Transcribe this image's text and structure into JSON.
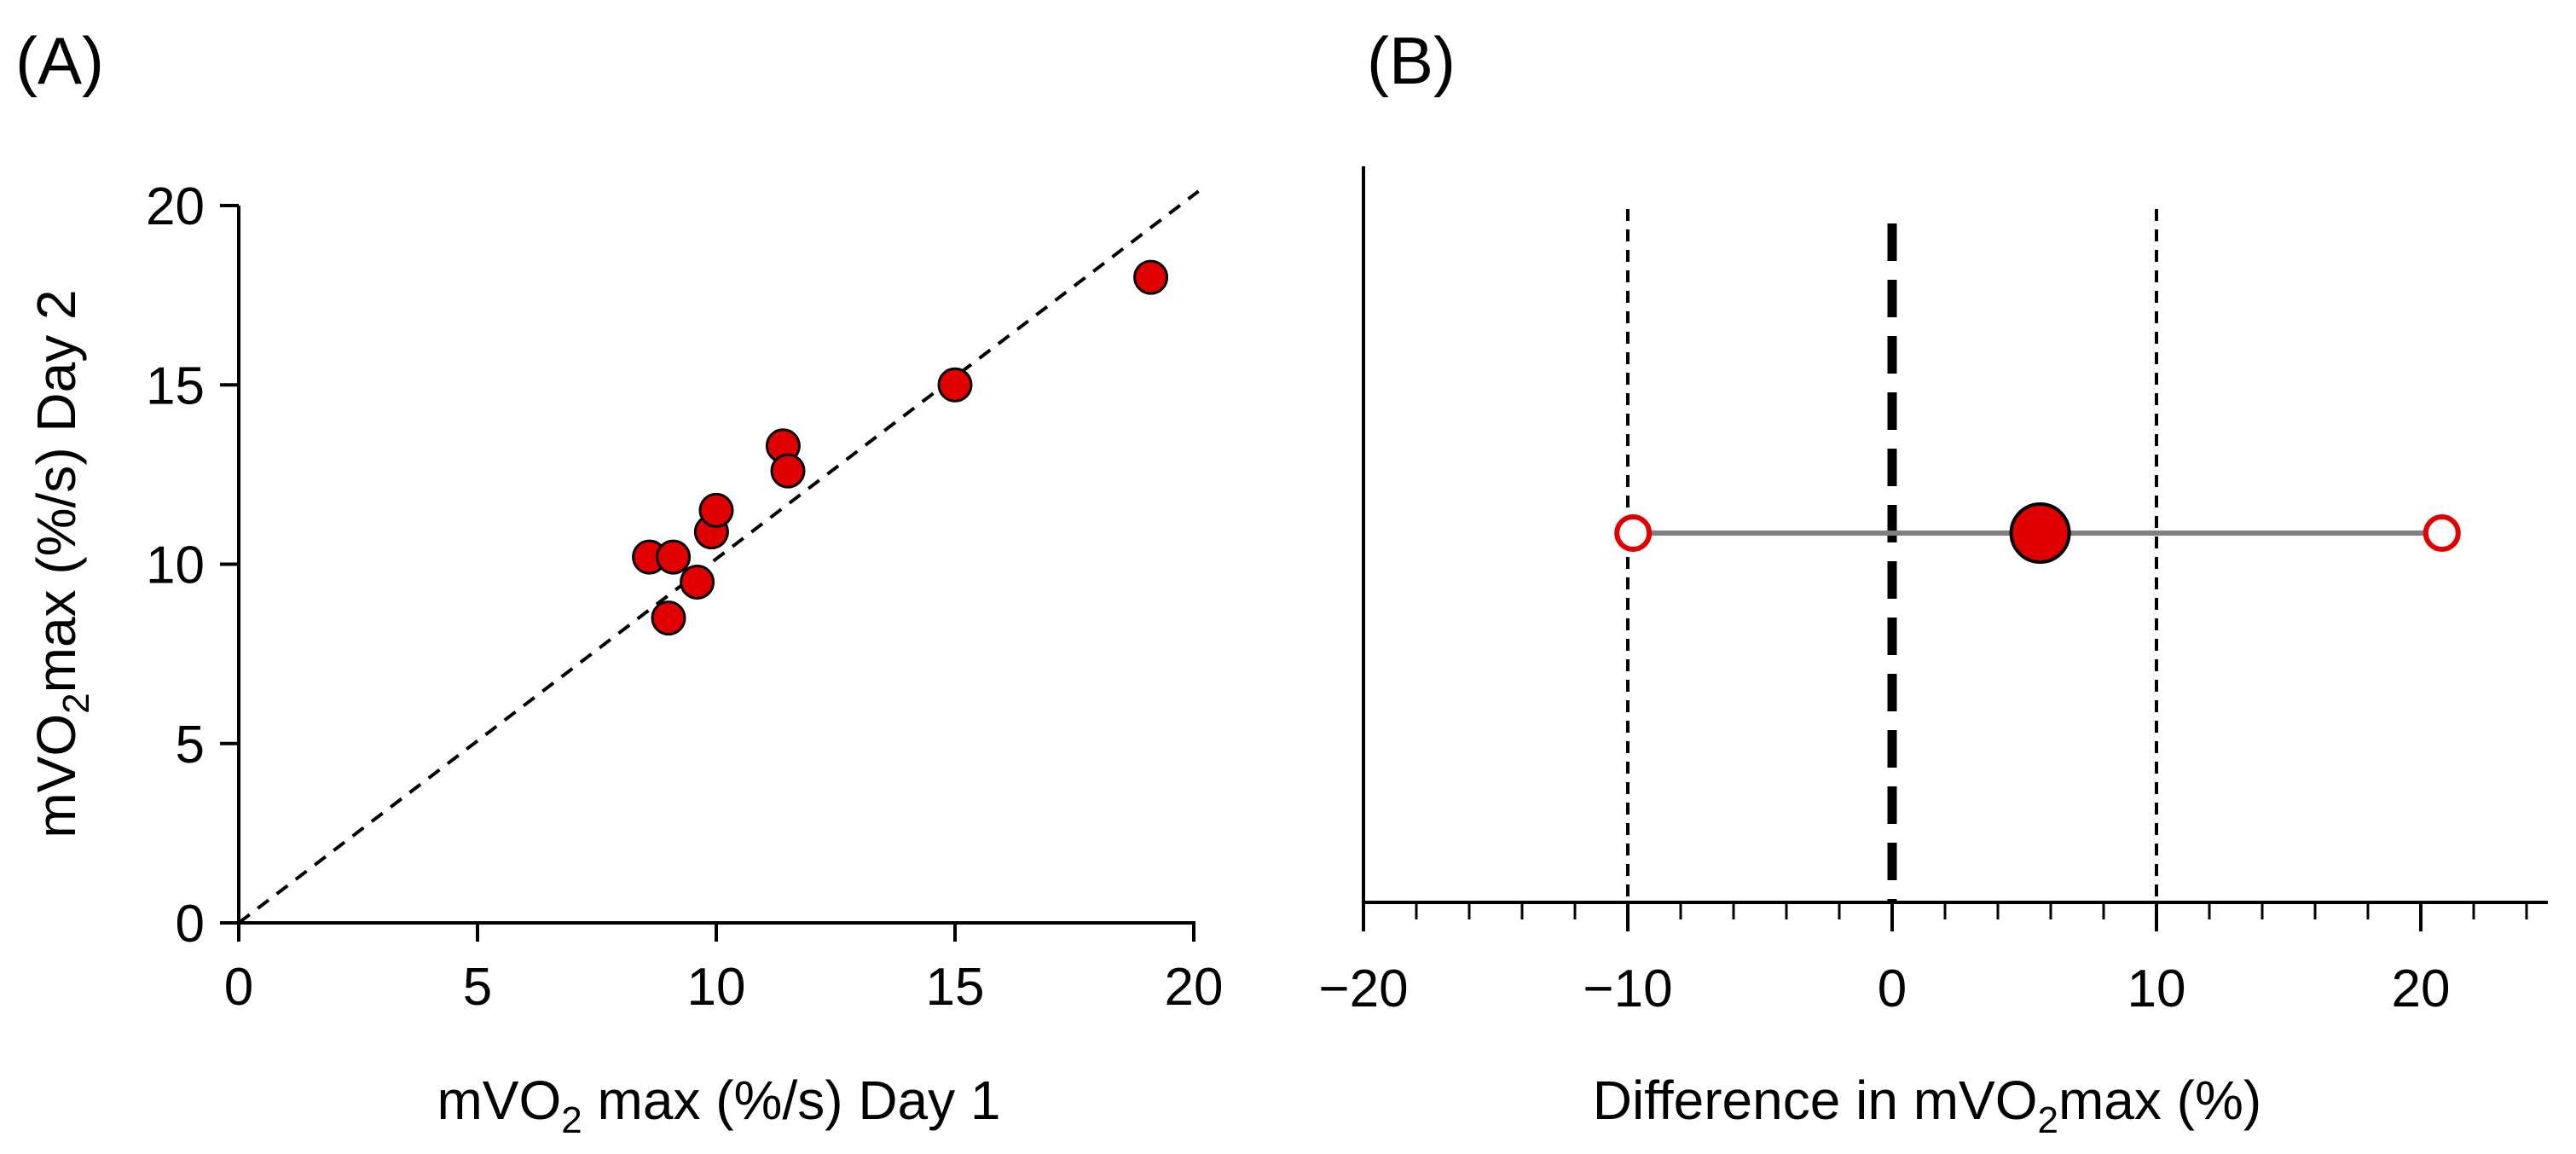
{
  "chart_data": [
    {
      "panel_label": "(A)",
      "type": "scatter",
      "xlabel": "mVO",
      "xlabel_sub": "2",
      "xlabel_rest": " max (%/s) Day 1",
      "ylabel": "mVO",
      "ylabel_sub": "2",
      "ylabel_rest": "max (%/s) Day 2",
      "xlim": [
        0,
        20
      ],
      "ylim": [
        0,
        20
      ],
      "xticks": [
        0,
        5,
        10,
        15,
        20
      ],
      "yticks": [
        0,
        5,
        10,
        15,
        20
      ],
      "x_tick_labels": [
        "0",
        "5",
        "10",
        "15",
        "20"
      ],
      "y_tick_labels": [
        "0",
        "5",
        "10",
        "15",
        "20"
      ],
      "reference_line": {
        "type": "identity",
        "from": [
          0,
          0
        ],
        "to": [
          20.1,
          20.4
        ],
        "style": "dashed"
      },
      "marker_color": "#e00000",
      "points": [
        {
          "x": 8.6,
          "y": 10.2
        },
        {
          "x": 9.1,
          "y": 10.2
        },
        {
          "x": 9.0,
          "y": 8.5
        },
        {
          "x": 9.6,
          "y": 9.5
        },
        {
          "x": 9.9,
          "y": 10.9
        },
        {
          "x": 10.0,
          "y": 11.5
        },
        {
          "x": 11.4,
          "y": 13.3
        },
        {
          "x": 11.5,
          "y": 12.6
        },
        {
          "x": 15.0,
          "y": 15.0
        },
        {
          "x": 19.1,
          "y": 18.0
        }
      ]
    },
    {
      "panel_label": "(B)",
      "type": "bland-altman-interval",
      "xlabel": "Difference in mVO",
      "xlabel_sub": "2",
      "xlabel_rest": "max (%)",
      "xlim": [
        -20,
        25
      ],
      "xticks": [
        -20,
        -10,
        0,
        10,
        20
      ],
      "x_tick_labels": [
        "−20",
        "−10",
        "0",
        "10",
        "20"
      ],
      "minor_tick_step": 2,
      "mean_difference": 5.6,
      "lower_limit": -9.8,
      "upper_limit": 20.8,
      "reference_lines": [
        {
          "x": -10,
          "style": "dashed-thin"
        },
        {
          "x": 0,
          "style": "dashed-bold"
        },
        {
          "x": 10,
          "style": "dashed-thin"
        }
      ],
      "marker_color": "#e00000",
      "line_color": "#808080"
    }
  ]
}
